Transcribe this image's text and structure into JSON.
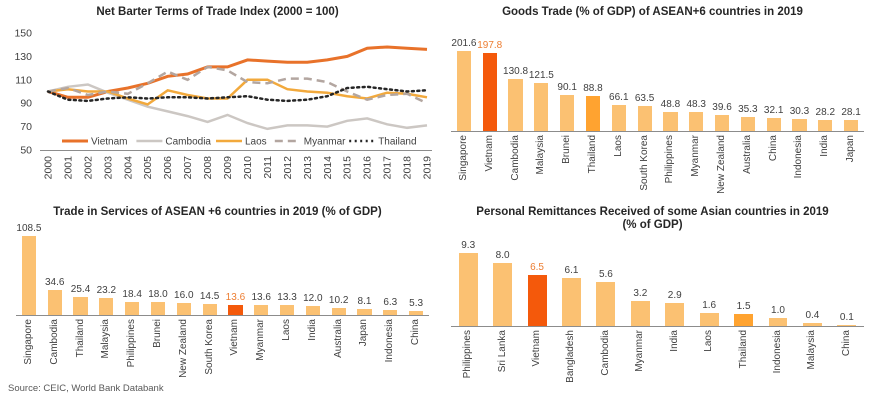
{
  "source_note": "Source: CEIC, World Bank Databank",
  "colors": {
    "bar_light": "#FBC172",
    "bar_highlight": "#F4590B",
    "bar_medium": "#FFA330",
    "label_dark": "#404040",
    "label_highlight": "#ED7D31",
    "axis": "#8C8C8C",
    "title_text": "#262626",
    "source_text": "#595959"
  },
  "chart_data": [
    {
      "id": "net-barter-terms-of-trade",
      "type": "line",
      "title": "Net Barter Terms of Trade Index (2000 = 100)",
      "x": [
        "2000",
        "2001",
        "2002",
        "2003",
        "2004",
        "2005",
        "2006",
        "2007",
        "2008",
        "2009",
        "2010",
        "2011",
        "2012",
        "2013",
        "2014",
        "2015",
        "2016",
        "2017",
        "2018",
        "2019"
      ],
      "ylim": [
        50,
        150
      ],
      "yticks": [
        50,
        70,
        90,
        110,
        130,
        150
      ],
      "grid": false,
      "legend_position": "bottom-inside",
      "series": [
        {
          "name": "Vietnam",
          "color": "#E8722A",
          "style": "solid",
          "width": 3,
          "values": [
            100,
            95,
            95,
            100,
            103,
            107,
            113,
            115,
            121,
            121,
            127,
            126,
            125,
            125,
            127,
            130,
            137,
            138,
            137,
            136
          ]
        },
        {
          "name": "Cambodia",
          "color": "#CCC7C3",
          "style": "solid",
          "width": 2.5,
          "values": [
            100,
            104,
            106,
            99,
            93,
            87,
            83,
            79,
            74,
            80,
            73,
            68,
            71,
            71,
            70,
            75,
            77,
            72,
            69,
            71
          ]
        },
        {
          "name": "Laos",
          "color": "#F2A93C",
          "style": "solid",
          "width": 2.5,
          "values": [
            100,
            102,
            100,
            100,
            94,
            89,
            101,
            97,
            94,
            94,
            110,
            110,
            102,
            100,
            99,
            96,
            94,
            99,
            98,
            95
          ]
        },
        {
          "name": "Myanmar",
          "color": "#B3A6A0",
          "style": "dashed",
          "width": 2.5,
          "dash": "8 5",
          "values": [
            100,
            103,
            97,
            100,
            98,
            107,
            117,
            110,
            121,
            118,
            108,
            107,
            111,
            111,
            108,
            100,
            93,
            97,
            98,
            90
          ]
        },
        {
          "name": "Thailand",
          "color": "#262626",
          "style": "dotted",
          "width": 2.5,
          "dash": "2 3.5",
          "values": [
            100,
            93,
            92,
            94,
            95,
            94,
            95,
            95,
            94,
            95,
            96,
            93,
            92,
            93,
            96,
            103,
            104,
            102,
            100,
            101
          ]
        }
      ]
    },
    {
      "id": "goods-trade",
      "type": "bar",
      "title": "Goods Trade (% of GDP) of ASEAN+6 countries in 2019",
      "categories": [
        "Singapore",
        "Vietnam",
        "Cambodia",
        "Malaysia",
        "Brunei",
        "Thailand",
        "Laos",
        "South Korea",
        "Philippines",
        "Myanmar",
        "New Zealand",
        "Australia",
        "China",
        "Indonesia",
        "India",
        "Japan"
      ],
      "values": [
        201.6,
        197.8,
        130.8,
        121.5,
        90.1,
        88.8,
        66.1,
        63.5,
        48.8,
        48.3,
        39.6,
        35.3,
        32.1,
        30.3,
        28.2,
        28.1
      ],
      "value_labels": [
        "201.6",
        "197.8",
        "130.8",
        "121.5",
        "90.1",
        "88.8",
        "66.1",
        "63.5",
        "48.8",
        "48.3",
        "39.6",
        "35.3",
        "32.1",
        "30.3",
        "28.2",
        "28.1"
      ],
      "bar_styles": [
        "light",
        "highlight",
        "light",
        "light",
        "light",
        "medium",
        "light",
        "light",
        "light",
        "light",
        "light",
        "light",
        "light",
        "light",
        "light",
        "light"
      ],
      "label_styles": [
        "dark",
        "highlight",
        "dark",
        "dark",
        "dark",
        "dark",
        "dark",
        "dark",
        "dark",
        "dark",
        "dark",
        "dark",
        "dark",
        "dark",
        "dark",
        "dark"
      ]
    },
    {
      "id": "trade-in-services",
      "type": "bar",
      "title": "Trade in Services of ASEAN +6 countries in 2019 (% of GDP)",
      "categories": [
        "Singapore",
        "Cambodia",
        "Thailand",
        "Malaysia",
        "Philippines",
        "Brunei",
        "New Zealand",
        "South Korea",
        "Vietnam",
        "Myanmar",
        "Laos",
        "India",
        "Australia",
        "Japan",
        "Indonesia",
        "China"
      ],
      "values": [
        108.5,
        34.6,
        25.4,
        23.2,
        18.4,
        18.0,
        16.0,
        14.5,
        13.6,
        13.6,
        13.3,
        12.0,
        10.2,
        8.1,
        6.3,
        5.3
      ],
      "value_labels": [
        "108.5",
        "34.6",
        "25.4",
        "23.2",
        "18.4",
        "18.0",
        "16.0",
        "14.5",
        "13.6",
        "13.6",
        "13.3",
        "12.0",
        "10.2",
        "8.1",
        "6.3",
        "5.3"
      ],
      "bar_styles": [
        "light",
        "light",
        "light",
        "light",
        "light",
        "light",
        "light",
        "light",
        "highlight",
        "light",
        "light",
        "light",
        "light",
        "light",
        "light",
        "light"
      ],
      "label_styles": [
        "dark",
        "dark",
        "dark",
        "dark",
        "dark",
        "dark",
        "dark",
        "dark",
        "highlight",
        "dark",
        "dark",
        "dark",
        "dark",
        "dark",
        "dark",
        "dark"
      ]
    },
    {
      "id": "personal-remittances",
      "type": "bar",
      "title": "Personal Remittances Received of some Asian countries in 2019\n(% of GDP)",
      "categories": [
        "Philippines",
        "Sri Lanka",
        "Vietnam",
        "Bangladesh",
        "Cambodia",
        "Myanmar",
        "India",
        "Laos",
        "Thailand",
        "Indonesia",
        "Malaysia",
        "China"
      ],
      "values": [
        9.3,
        8.0,
        6.5,
        6.1,
        5.6,
        3.2,
        2.9,
        1.6,
        1.5,
        1.0,
        0.4,
        0.1
      ],
      "value_labels": [
        "9.3",
        "8.0",
        "6.5",
        "6.1",
        "5.6",
        "3.2",
        "2.9",
        "1.6",
        "1.5",
        "1.0",
        "0.4",
        "0.1"
      ],
      "bar_styles": [
        "light",
        "light",
        "highlight",
        "light",
        "light",
        "light",
        "light",
        "light",
        "medium",
        "light",
        "light",
        "light"
      ],
      "label_styles": [
        "dark",
        "dark",
        "highlight",
        "dark",
        "dark",
        "dark",
        "dark",
        "dark",
        "dark",
        "dark",
        "dark",
        "dark"
      ]
    }
  ]
}
